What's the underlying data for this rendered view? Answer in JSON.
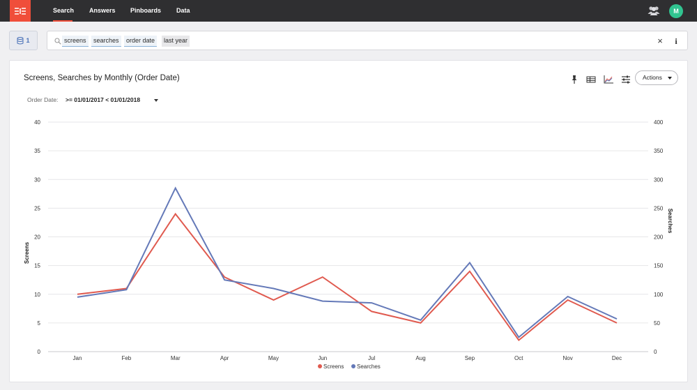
{
  "nav": {
    "items": [
      {
        "label": "Search",
        "active": true
      },
      {
        "label": "Answers",
        "active": false
      },
      {
        "label": "Pinboards",
        "active": false
      },
      {
        "label": "Data",
        "active": false
      }
    ],
    "avatar_initial": "M"
  },
  "source": {
    "count": "1"
  },
  "search": {
    "tokens": [
      {
        "text": "screens",
        "kind": "measure"
      },
      {
        "text": "searches",
        "kind": "measure"
      },
      {
        "text": "order date",
        "kind": "attribute"
      },
      {
        "text": "last year",
        "kind": "keyword"
      }
    ],
    "clear_symbol": "×",
    "info_symbol": "i"
  },
  "answer": {
    "title": "Screens, Searches by Monthly (Order Date)",
    "actions_label": "Actions",
    "filter_label": "Order Date:",
    "filter_value": ">= 01/01/2017 < 01/01/2018",
    "toolbar_icons": [
      "pin-icon",
      "table-icon",
      "chart-icon",
      "settings-icon"
    ]
  },
  "chart_data": {
    "type": "line",
    "categories": [
      "Jan",
      "Feb",
      "Mar",
      "Apr",
      "May",
      "Jun",
      "Jul",
      "Aug",
      "Sep",
      "Oct",
      "Nov",
      "Dec"
    ],
    "series": [
      {
        "name": "Screens",
        "axis": "left",
        "color": "#e05a4f",
        "values": [
          10,
          11,
          24,
          13,
          9,
          13,
          7,
          5,
          14,
          2,
          9,
          5
        ]
      },
      {
        "name": "Searches",
        "axis": "right",
        "color": "#6479b8",
        "values": [
          95,
          108,
          285,
          125,
          110,
          88,
          85,
          55,
          155,
          25,
          96,
          57
        ]
      }
    ],
    "ylabel_left": "Screens",
    "ylabel_right": "Searches",
    "ylim_left": [
      0,
      40
    ],
    "ylim_right": [
      0,
      400
    ],
    "yticks_left": [
      0,
      5,
      10,
      15,
      20,
      25,
      30,
      35,
      40
    ],
    "yticks_right": [
      0,
      50,
      100,
      150,
      200,
      250,
      300,
      350,
      400
    ],
    "grid": true,
    "legend_position": "bottom-center"
  },
  "colors": {
    "brand": "#f04e3a",
    "topbar": "#2f2f31",
    "avatar": "#31c490",
    "source_accent": "#4a72b8"
  }
}
